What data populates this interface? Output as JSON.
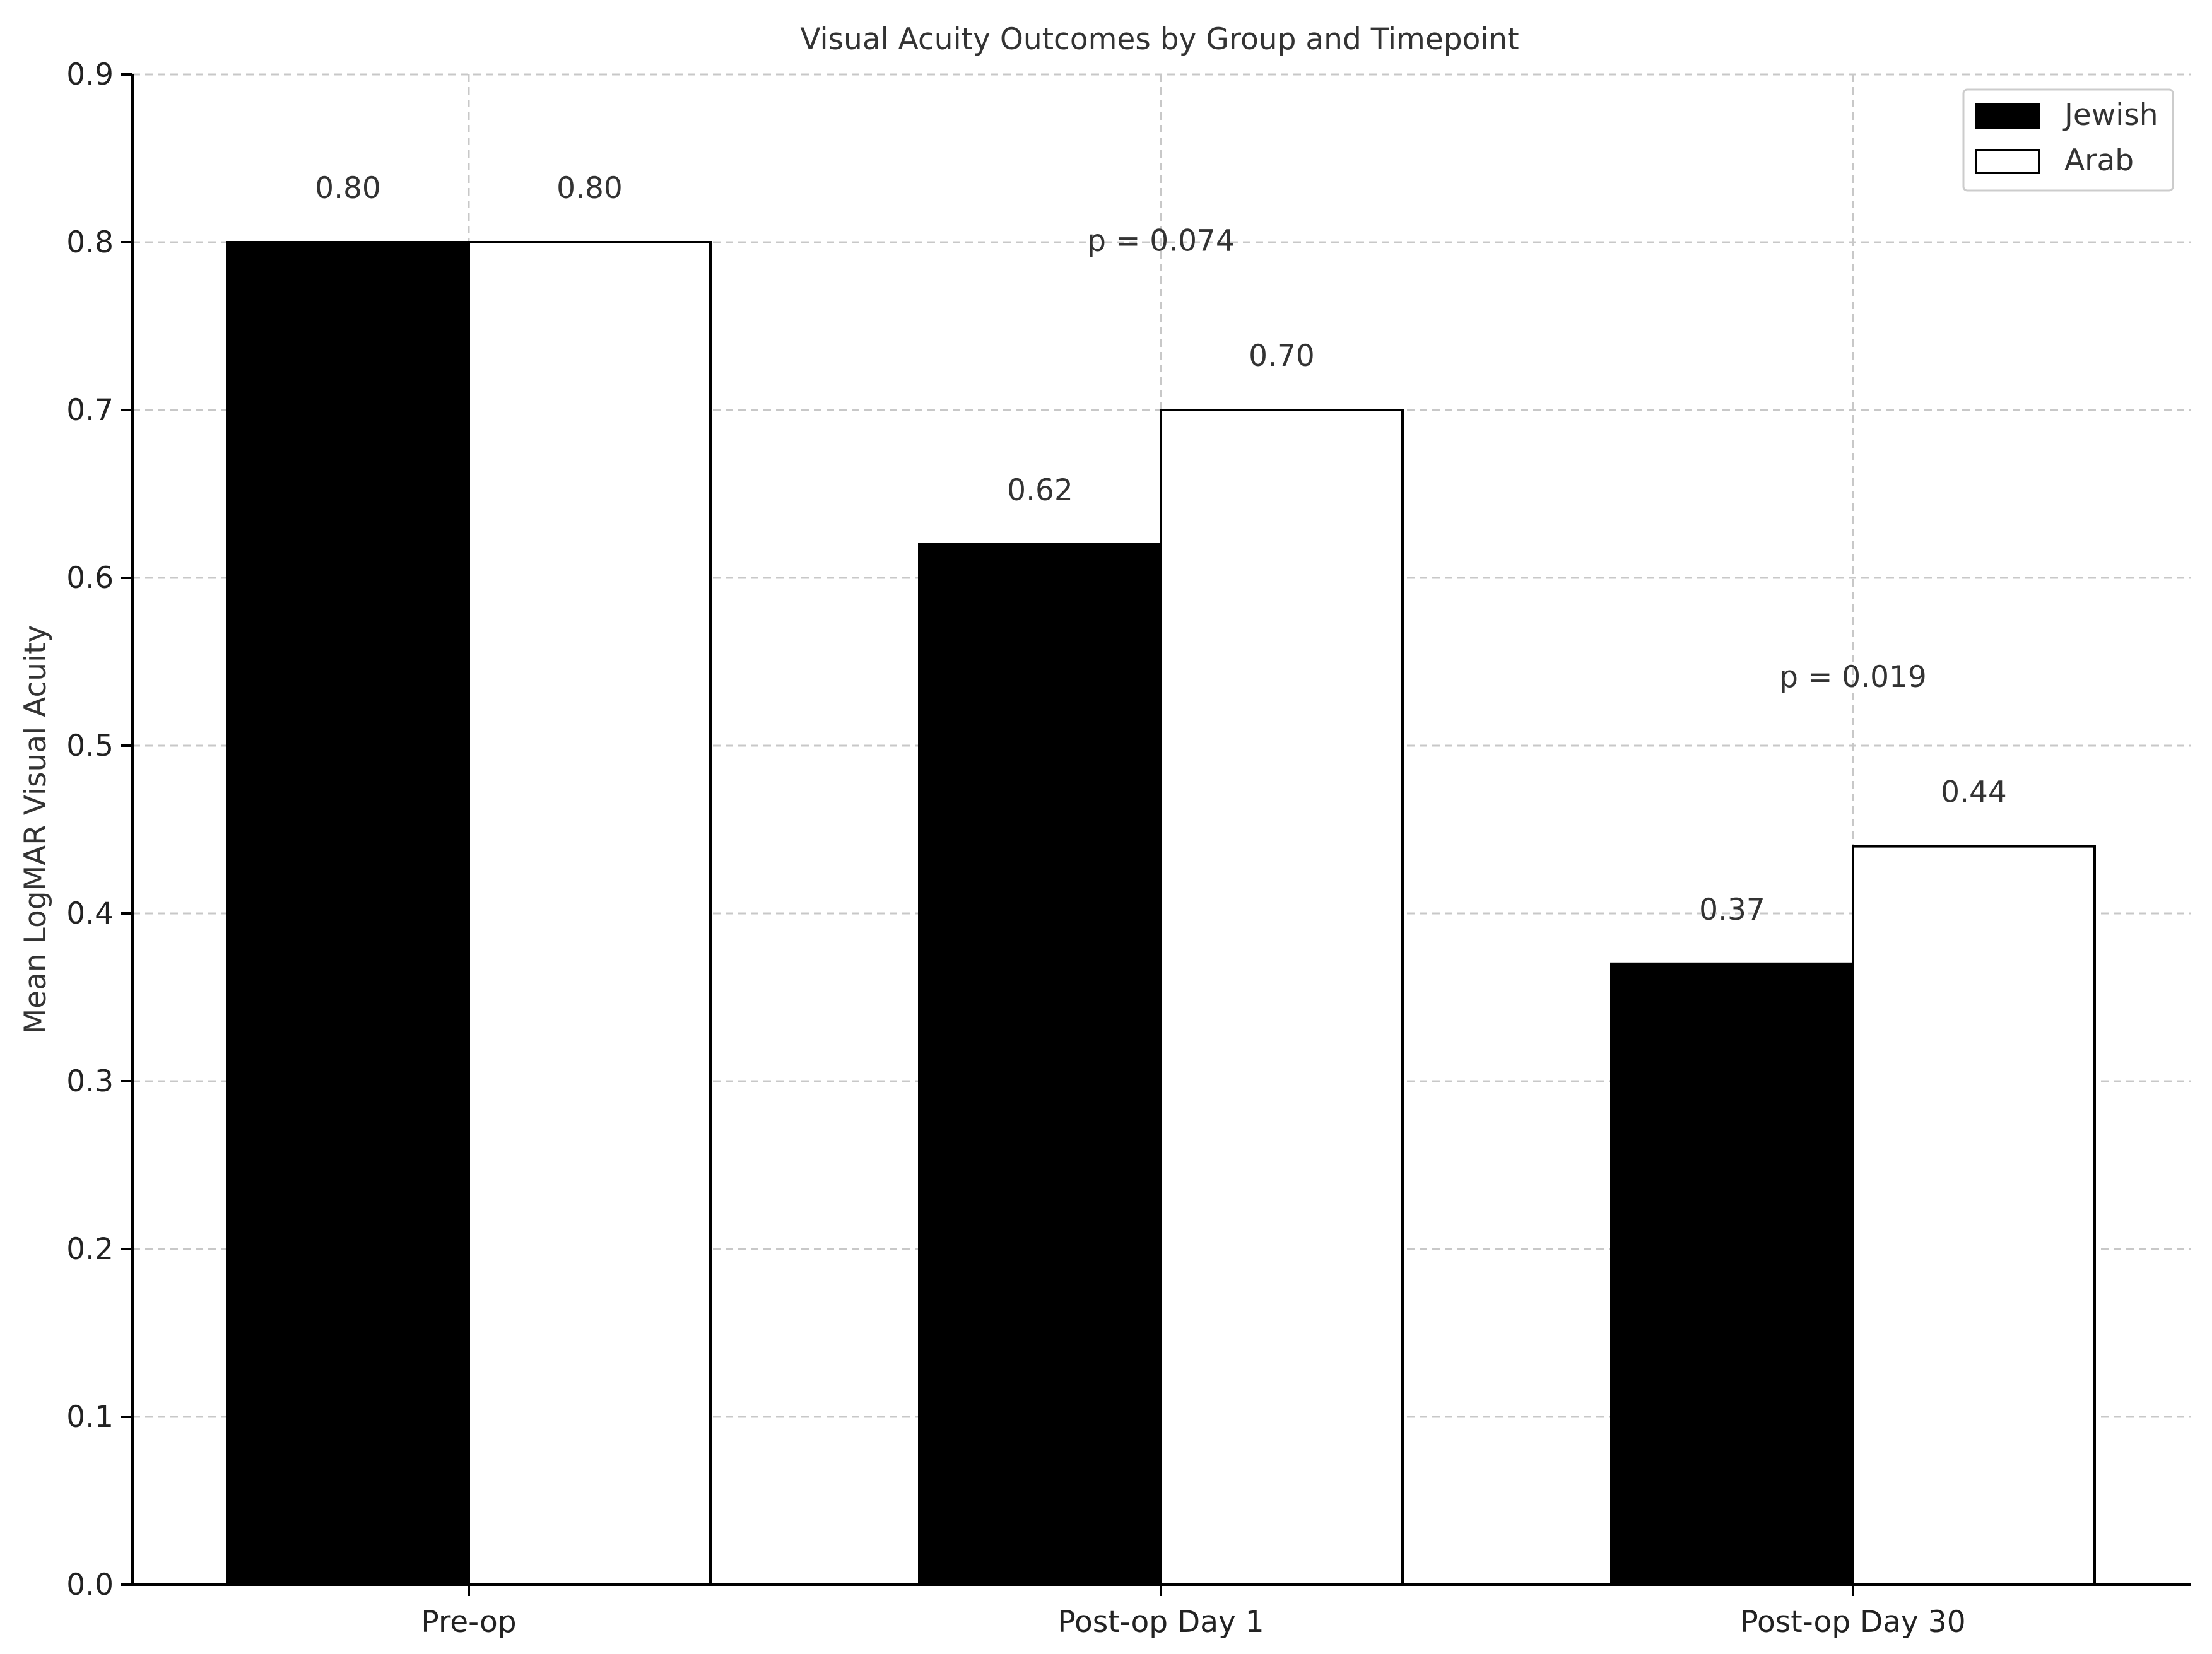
{
  "chart_data": {
    "type": "bar",
    "title": "Visual Acuity Outcomes by Group and Timepoint",
    "xlabel": "",
    "ylabel": "Mean LogMAR Visual Acuity",
    "ylim": [
      0,
      0.9
    ],
    "yticks": [
      "0.0",
      "0.1",
      "0.2",
      "0.3",
      "0.4",
      "0.5",
      "0.6",
      "0.7",
      "0.8",
      "0.9"
    ],
    "categories": [
      "Pre-op",
      "Post-op Day 1",
      "Post-op Day 30"
    ],
    "series": [
      {
        "name": "Jewish",
        "values": [
          0.8,
          0.62,
          0.37
        ],
        "labels": [
          "0.80",
          "0.62",
          "0.37"
        ],
        "fill": "#000000"
      },
      {
        "name": "Arab",
        "values": [
          0.8,
          0.7,
          0.44
        ],
        "labels": [
          "0.80",
          "0.70",
          "0.44"
        ],
        "fill": "#ffffff"
      }
    ],
    "annotations": [
      {
        "category_index": 1,
        "text": "p = 0.074",
        "y": 0.795
      },
      {
        "category_index": 2,
        "text": "p = 0.019",
        "y": 0.535
      }
    ],
    "grid": true,
    "legend_position": "top-right"
  }
}
